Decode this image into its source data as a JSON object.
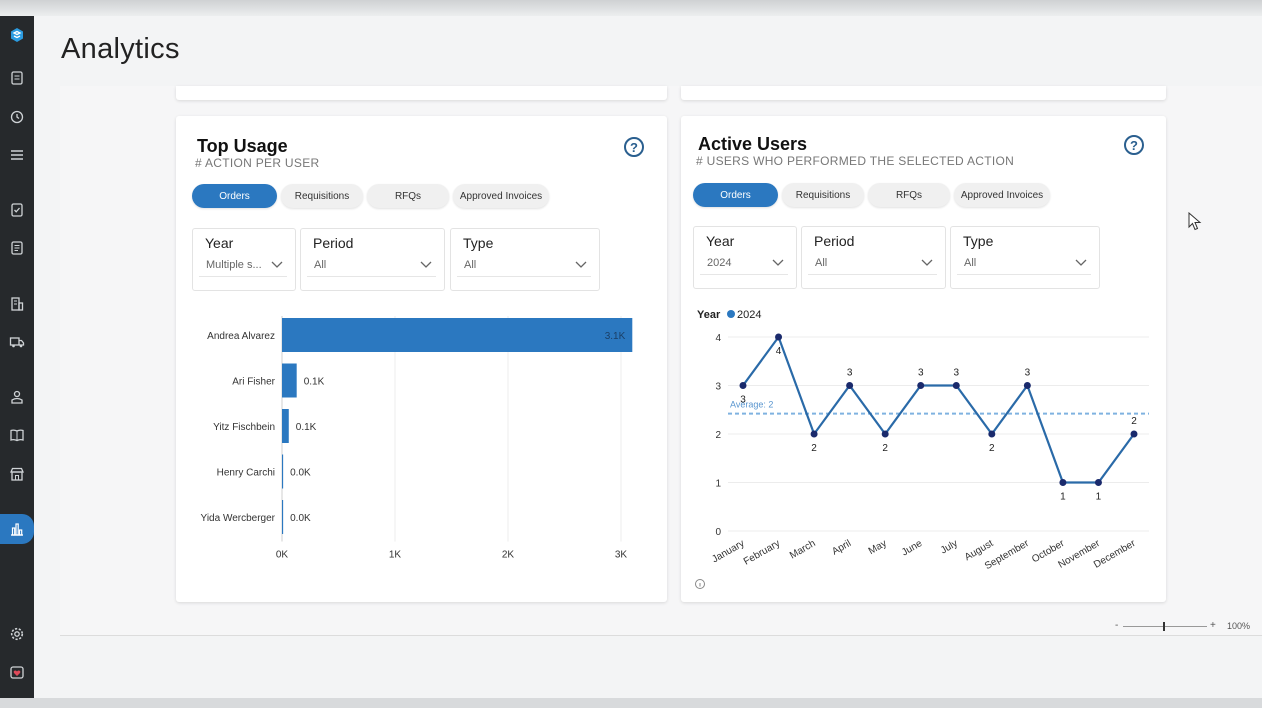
{
  "page": {
    "title": "Analytics"
  },
  "sidebar": {
    "icons": [
      "logo-icon",
      "document-icon",
      "history-icon",
      "list-icon",
      "checklist-icon",
      "form-icon",
      "building-icon",
      "truck-icon",
      "user-badge-icon",
      "book-icon",
      "store-icon",
      "chart-icon",
      "settings-icon",
      "heart-icon"
    ],
    "active": "chart-icon"
  },
  "top_usage": {
    "title": "Top Usage",
    "subtitle": "# ACTION PER USER",
    "tabs": [
      "Orders",
      "Requisitions",
      "RFQs",
      "Approved Invoices"
    ],
    "active_tab": "Orders",
    "filters": [
      {
        "label": "Year",
        "value": "Multiple s..."
      },
      {
        "label": "Period",
        "value": "All"
      },
      {
        "label": "Type",
        "value": "All"
      }
    ],
    "chart_data": {
      "type": "bar",
      "orientation": "horizontal",
      "categories": [
        "Andrea Alvarez",
        "Ari Fisher",
        "Yitz Fischbein",
        "Henry Carchi",
        "Yida Wercberger"
      ],
      "values": [
        3.1,
        0.13,
        0.06,
        0.01,
        0.01
      ],
      "value_labels": [
        "3.1K",
        "0.1K",
        "0.1K",
        "0.0K",
        "0.0K"
      ],
      "xticks": [
        "0K",
        "1K",
        "2K",
        "3K"
      ],
      "xlim": [
        0,
        3
      ],
      "color": "#2b78c0",
      "grid": true
    }
  },
  "active_users": {
    "title": "Active Users",
    "subtitle": "# USERS WHO PERFORMED THE SELECTED ACTION",
    "tabs": [
      "Orders",
      "Requisitions",
      "RFQs",
      "Approved Invoices"
    ],
    "active_tab": "Orders",
    "filters": [
      {
        "label": "Year",
        "value": "2024"
      },
      {
        "label": "Period",
        "value": "All"
      },
      {
        "label": "Type",
        "value": "All"
      }
    ],
    "chart_data": {
      "type": "line",
      "legend_title": "Year",
      "series": [
        {
          "name": "2024",
          "values": [
            3,
            4,
            2,
            3,
            2,
            3,
            3,
            2,
            3,
            1,
            1,
            2
          ]
        }
      ],
      "categories": [
        "January",
        "February",
        "March",
        "April",
        "May",
        "June",
        "July",
        "August",
        "September",
        "October",
        "November",
        "December"
      ],
      "yticks": [
        "0",
        "1",
        "2",
        "3",
        "4"
      ],
      "ylim": [
        0,
        4
      ],
      "average": {
        "label": "Average: 2",
        "value": 2.42
      },
      "line_color": "#2a6aa8",
      "point_color": "#1a2a6c",
      "average_color": "#7fb2e0",
      "grid": true
    }
  },
  "zoom": {
    "minus": "-",
    "plus": "+",
    "level": "100%"
  }
}
